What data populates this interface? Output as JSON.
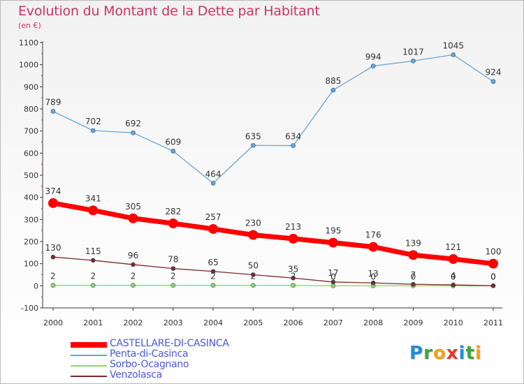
{
  "title": "Evolution du Montant de la Dette par Habitant",
  "subtitle": "(en €)",
  "brand": {
    "text": "Proxiti",
    "letters": [
      {
        "ch": "P",
        "color": "#1f8fd6"
      },
      {
        "ch": "r",
        "color": "#3aa63a"
      },
      {
        "ch": "o",
        "color": "#f3a21b"
      },
      {
        "ch": "x",
        "color": "#e23a2a"
      },
      {
        "ch": "i",
        "color": "#1f8fd6"
      },
      {
        "ch": "t",
        "color": "#3aa63a"
      },
      {
        "ch": "i",
        "color": "#f3a21b"
      }
    ]
  },
  "chart_data": {
    "type": "line",
    "title": "Evolution du Montant de la Dette par Habitant",
    "ylabel": "(en €)",
    "xlabel": "",
    "x": [
      "2000",
      "2001",
      "2002",
      "2003",
      "2004",
      "2005",
      "2006",
      "2007",
      "2008",
      "2009",
      "2010",
      "2011"
    ],
    "ylim": [
      -100,
      1100
    ],
    "yticks": [
      "-100",
      "0",
      "100",
      "200",
      "300",
      "400",
      "500",
      "600",
      "700",
      "800",
      "900",
      "1000",
      "1100"
    ],
    "grid": false,
    "legend_position": "bottom-left",
    "series": [
      {
        "name": "CASTELLARE-DI-CASINCA",
        "color": "#ff0000",
        "emphasis": true,
        "values": [
          374,
          341,
          305,
          282,
          257,
          230,
          213,
          195,
          176,
          139,
          121,
          100
        ],
        "labels": [
          "374",
          "341",
          "305",
          "282",
          "257",
          "230",
          "213",
          "195",
          "176",
          "139",
          "121",
          "100"
        ]
      },
      {
        "name": "Penta-di-Casinca",
        "color": "#6aa6d8",
        "emphasis": false,
        "values": [
          789,
          702,
          692,
          609,
          464,
          635,
          634,
          885,
          994,
          1017,
          1045,
          924
        ],
        "labels": [
          "789",
          "702",
          "692",
          "609",
          "464",
          "635",
          "634",
          "885",
          "994",
          "1017",
          "1045",
          "924"
        ]
      },
      {
        "name": "Sorbo-Ocagnano",
        "color": "#8fd86a",
        "emphasis": false,
        "values": [
          2,
          2,
          2,
          2,
          2,
          2,
          2,
          0,
          0,
          0,
          0,
          0
        ],
        "labels": [
          "2",
          "2",
          "2",
          "2",
          "2",
          "2",
          "2",
          "0",
          "0",
          "0",
          "0",
          "0"
        ]
      },
      {
        "name": "Venzolasca",
        "color": "#7a2a2a",
        "emphasis": false,
        "values": [
          130,
          115,
          96,
          78,
          65,
          50,
          35,
          17,
          13,
          7,
          4,
          0
        ],
        "labels": [
          "130",
          "115",
          "96",
          "78",
          "65",
          "50",
          "35",
          "17",
          "13",
          "7",
          "4",
          "0"
        ]
      }
    ]
  }
}
